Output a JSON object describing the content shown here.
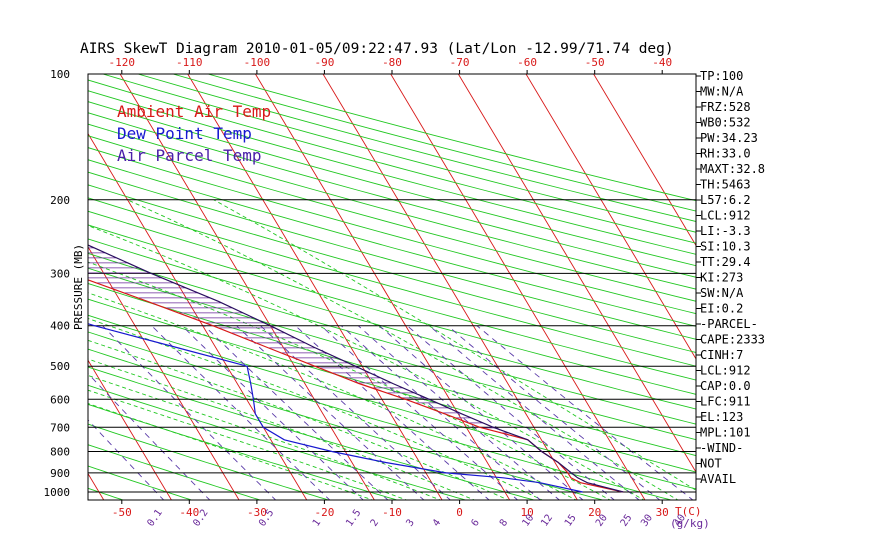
{
  "chart_data": {
    "type": "line",
    "title": "AIRS SkewT Diagram 2010-01-05/09:22:47.93 (Lat/Lon -12.99/71.74 deg)",
    "ylabel": "PRESSURE (MB)",
    "xlabel": "T(C)",
    "mixing_ratio_unit": "(g/kg)",
    "ylim": [
      1000,
      100
    ],
    "xlim_bottom": [
      -55,
      35
    ],
    "xlim_top": [
      -125,
      -35
    ],
    "y_scale": "log",
    "y_ticks": [
      1000,
      900,
      800,
      700,
      600,
      500,
      400,
      300,
      200,
      100
    ],
    "x_ticks_bottom": [
      -50,
      -40,
      -30,
      -20,
      -10,
      0,
      10,
      20,
      30
    ],
    "x_ticks_top": [
      -120,
      -110,
      -100,
      -90,
      -80,
      -70,
      -60,
      -50,
      -40
    ],
    "mixing_ratio_ticks": [
      "0.1",
      "0.2",
      "0.5",
      "1",
      "1.5",
      "2",
      "3",
      "4",
      "6",
      "8",
      "10",
      "12",
      "15",
      "20",
      "25",
      "30",
      "40"
    ],
    "legend": [
      {
        "name": "Ambient Air Temp",
        "color": "#d81818"
      },
      {
        "name": "Dew Point Temp",
        "color": "#1818d0"
      },
      {
        "name": "Air Parcel Temp",
        "color": "#4a20a8"
      }
    ],
    "colors": {
      "isotherm": "#d81818",
      "dry_adiabat": "#22c822",
      "moist_adiabat": "#22c822",
      "mixing_ratio": "#5a3aa8",
      "axis": "#000000",
      "tick_label": "#d81818",
      "mixing_label": "#6a2a9a",
      "parcel": "#2a1060",
      "cape_hatch": "#6a2a9a"
    },
    "series": [
      {
        "name": "Ambient Air Temp",
        "points": [
          {
            "p": 1000,
            "t": 27.5
          },
          {
            "p": 950,
            "t": 22
          },
          {
            "p": 925,
            "t": 21
          },
          {
            "p": 900,
            "t": 21
          },
          {
            "p": 850,
            "t": 20.5
          },
          {
            "p": 800,
            "t": 19
          },
          {
            "p": 750,
            "t": 18
          },
          {
            "p": 700,
            "t": 12
          },
          {
            "p": 650,
            "t": 8
          },
          {
            "p": 600,
            "t": 3.5
          },
          {
            "p": 550,
            "t": -2
          },
          {
            "p": 500,
            "t": -7
          },
          {
            "p": 450,
            "t": -12.5
          },
          {
            "p": 400,
            "t": -18.5
          },
          {
            "p": 350,
            "t": -26
          },
          {
            "p": 300,
            "t": -35
          },
          {
            "p": 250,
            "t": -44
          },
          {
            "p": 200,
            "t": -55
          },
          {
            "p": 175,
            "t": -62
          },
          {
            "p": 150,
            "t": -70
          },
          {
            "p": 125,
            "t": -78
          },
          {
            "p": 100,
            "t": -84
          }
        ]
      },
      {
        "name": "Dew Point Temp",
        "points": [
          {
            "p": 1000,
            "t": 21.5
          },
          {
            "p": 950,
            "t": 16
          },
          {
            "p": 925,
            "t": 11
          },
          {
            "p": 900,
            "t": 3
          },
          {
            "p": 850,
            "t": -5
          },
          {
            "p": 800,
            "t": -12
          },
          {
            "p": 750,
            "t": -18
          },
          {
            "p": 700,
            "t": -20
          },
          {
            "p": 650,
            "t": -20
          },
          {
            "p": 600,
            "t": -19
          },
          {
            "p": 550,
            "t": -18
          },
          {
            "p": 500,
            "t": -17
          },
          {
            "p": 450,
            "t": -26
          },
          {
            "p": 400,
            "t": -36
          },
          {
            "p": 350,
            "t": -46
          },
          {
            "p": 300,
            "t": -56
          },
          {
            "p": 250,
            "t": -61
          },
          {
            "p": 200,
            "t": -68
          },
          {
            "p": 150,
            "t": -75
          },
          {
            "p": 125,
            "t": -81
          },
          {
            "p": 100,
            "t": -86
          }
        ]
      },
      {
        "name": "Air Parcel Temp",
        "points": [
          {
            "p": 1000,
            "t": 27.5
          },
          {
            "p": 950,
            "t": 23
          },
          {
            "p": 925,
            "t": 22
          },
          {
            "p": 900,
            "t": 21.5
          },
          {
            "p": 850,
            "t": 20.5
          },
          {
            "p": 800,
            "t": 19
          },
          {
            "p": 750,
            "t": 18
          },
          {
            "p": 700,
            "t": 14
          },
          {
            "p": 650,
            "t": 10.5
          },
          {
            "p": 600,
            "t": 7
          },
          {
            "p": 550,
            "t": 3
          },
          {
            "p": 500,
            "t": -1
          },
          {
            "p": 450,
            "t": -5.5
          },
          {
            "p": 400,
            "t": -10
          },
          {
            "p": 350,
            "t": -15.5
          },
          {
            "p": 300,
            "t": -23
          },
          {
            "p": 250,
            "t": -31
          },
          {
            "p": 200,
            "t": -43
          },
          {
            "p": 175,
            "t": -51
          },
          {
            "p": 150,
            "t": -61
          },
          {
            "p": 125,
            "t": -72
          },
          {
            "p": 100,
            "t": -84
          }
        ]
      }
    ],
    "indices": [
      "TP:100",
      "MW:N/A",
      "FRZ:528",
      "WB0:532",
      "PW:34.23",
      "RH:33.0",
      "MAXT:32.8",
      "TH:5463",
      "L57:6.2",
      "LCL:912",
      "LI:-3.3",
      "SI:10.3",
      "TT:29.4",
      "KI:273",
      "SW:N/A",
      "EI:0.2",
      "-PARCEL-",
      "CAPE:2333",
      "CINH:7",
      "LCL:912",
      "CAP:0.0",
      "LFC:911",
      "EL:123",
      "MPL:101",
      "-WIND-",
      "NOT",
      "AVAIL"
    ]
  }
}
